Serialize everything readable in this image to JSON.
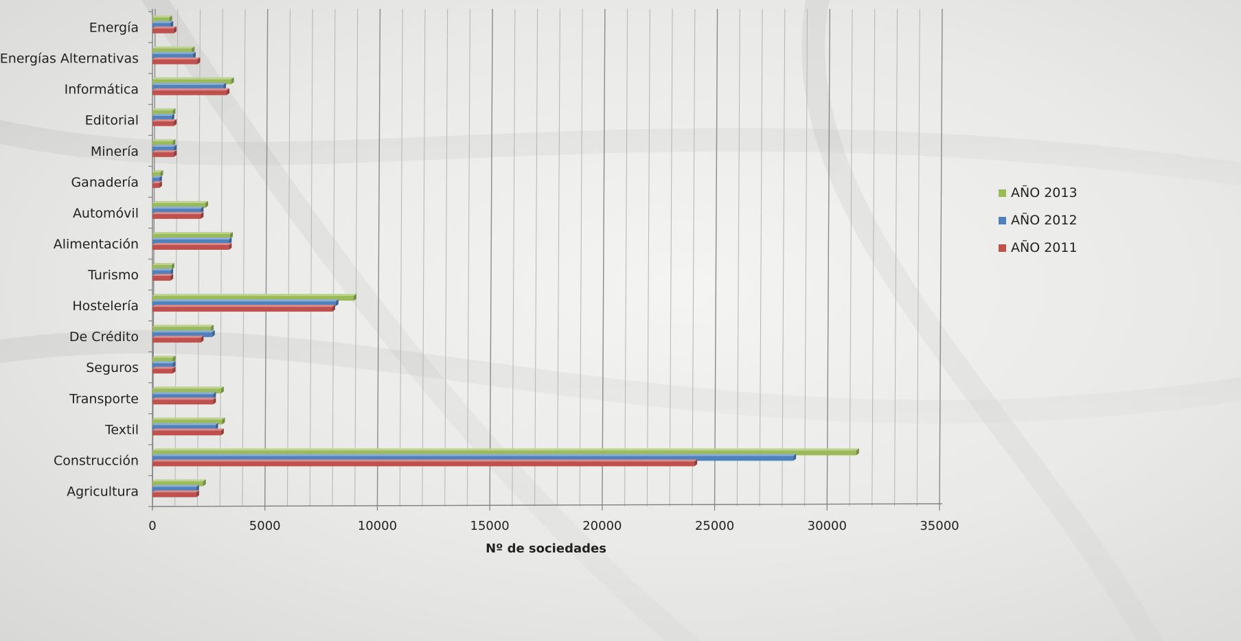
{
  "chart_data": {
    "type": "bar",
    "orientation": "horizontal",
    "categories": [
      "Energía",
      "Energías Alternativas",
      "Informática",
      "Editorial",
      "Minería",
      "Ganadería",
      "Automóvil",
      "Alimentación",
      "Turismo",
      "Hostelería",
      "De Crédito",
      "Seguros",
      "Transporte",
      "Textil",
      "Construcción",
      "Agricultura"
    ],
    "series": [
      {
        "name": "AÑO 2013",
        "color": "#9bbb59",
        "values": [
          750,
          1750,
          3500,
          900,
          900,
          350,
          2350,
          3450,
          850,
          8950,
          2600,
          900,
          3050,
          3100,
          31300,
          2250
        ]
      },
      {
        "name": "AÑO 2012",
        "color": "#4f81bd",
        "values": [
          800,
          1800,
          3150,
          850,
          950,
          300,
          2150,
          3400,
          800,
          8150,
          2650,
          900,
          2700,
          2800,
          28500,
          1950
        ]
      },
      {
        "name": "AÑO 2011",
        "color": "#c0504d",
        "values": [
          950,
          2000,
          3300,
          950,
          950,
          300,
          2150,
          3400,
          800,
          8000,
          2150,
          900,
          2700,
          3050,
          24100,
          1950
        ]
      }
    ],
    "x_ticks": [
      "0",
      "5000",
      "10000",
      "15000",
      "20000",
      "25000",
      "30000",
      "35000"
    ],
    "xlim": [
      0,
      35000
    ],
    "xlabel": "Nº de sociedades",
    "ylabel": "",
    "title": "",
    "grid": true,
    "legend_position": "right",
    "legend": [
      "AÑO 2013",
      "AÑO 2012",
      "AÑO 2011"
    ]
  }
}
